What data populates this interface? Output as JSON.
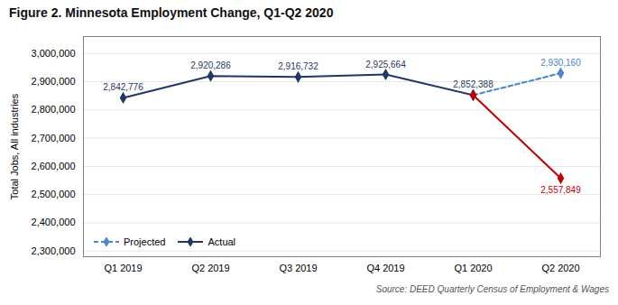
{
  "chart_data": {
    "type": "line",
    "title": "Figure 2. Minnesota Employment Change, Q1-Q2 2020",
    "ylabel": "Total Jobs, All industries",
    "source": "Source: DEED Quarterly Census of Employment & Wages",
    "categories": [
      "Q1 2019",
      "Q2 2019",
      "Q3 2019",
      "Q4 2019",
      "Q1 2020",
      "Q2 2020"
    ],
    "series": [
      {
        "name": "Projected",
        "color": "#4a86c8",
        "marker": "diamond",
        "line_style": "dashed",
        "values": [
          null,
          null,
          null,
          null,
          2852388,
          2930160
        ],
        "value_labels": [
          null,
          null,
          null,
          null,
          null,
          "2,930,160"
        ]
      },
      {
        "name": "Actual",
        "color": "#1f3864",
        "marker": "diamond",
        "line_style": "solid",
        "values": [
          2842776,
          2920286,
          2916732,
          2925664,
          2852388,
          null
        ],
        "value_labels": [
          "2,842,776",
          "2,920,286",
          "2,916,732",
          "2,925,664",
          "2,852,388",
          null
        ]
      },
      {
        "color": "#c00000",
        "marker": "diamond",
        "line_style": "solid",
        "values": [
          null,
          null,
          null,
          null,
          2852388,
          2557849
        ],
        "value_labels": [
          null,
          null,
          null,
          null,
          null,
          "2,557,849"
        ]
      }
    ],
    "ylim": [
      2280000,
      3060000
    ],
    "yticks": [
      {
        "value": 2300000,
        "label": "2,300,000"
      },
      {
        "value": 2400000,
        "label": "2,400,000"
      },
      {
        "value": 2500000,
        "label": "2,500,000"
      },
      {
        "value": 2600000,
        "label": "2,600,000"
      },
      {
        "value": 2700000,
        "label": "2,700,000"
      },
      {
        "value": 2800000,
        "label": "2,800,000"
      },
      {
        "value": 2900000,
        "label": "2,900,000"
      },
      {
        "value": 3000000,
        "label": "3,000,000"
      }
    ],
    "grid": true,
    "legend": "lower left",
    "data_labels": true
  }
}
